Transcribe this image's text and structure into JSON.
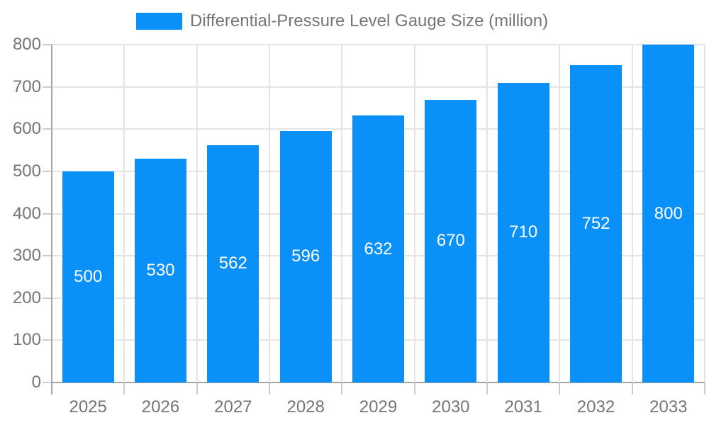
{
  "legend": {
    "label": "Differential-Pressure Level Gauge Size (million)"
  },
  "chart_data": {
    "type": "bar",
    "title": "Differential-Pressure Level Gauge Size (million)",
    "categories": [
      "2025",
      "2026",
      "2027",
      "2028",
      "2029",
      "2030",
      "2031",
      "2032",
      "2033"
    ],
    "values": [
      500,
      530,
      562,
      596,
      632,
      670,
      710,
      752,
      800
    ],
    "xlabel": "",
    "ylabel": "",
    "ylim": [
      0,
      800
    ],
    "ytick_step": 100,
    "grid": true,
    "legend_position": "top",
    "bar_color": "#0a90f9",
    "bar_label_color": "#ffffff",
    "grid_color": "#e4e4e4",
    "tick_color": "#cccccc",
    "axis_color": "#a6a6a6",
    "text_color": "#757575"
  }
}
